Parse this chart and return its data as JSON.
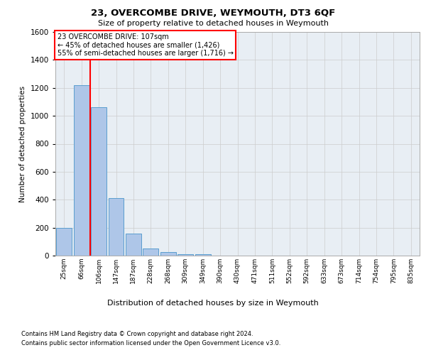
{
  "title": "23, OVERCOMBE DRIVE, WEYMOUTH, DT3 6QF",
  "subtitle": "Size of property relative to detached houses in Weymouth",
  "xlabel": "Distribution of detached houses by size in Weymouth",
  "ylabel": "Number of detached properties",
  "categories": [
    "25sqm",
    "66sqm",
    "106sqm",
    "147sqm",
    "187sqm",
    "228sqm",
    "268sqm",
    "309sqm",
    "349sqm",
    "390sqm",
    "430sqm",
    "471sqm",
    "511sqm",
    "552sqm",
    "592sqm",
    "633sqm",
    "673sqm",
    "714sqm",
    "754sqm",
    "795sqm",
    "835sqm"
  ],
  "values": [
    200,
    1220,
    1060,
    410,
    160,
    50,
    25,
    10,
    10,
    0,
    0,
    0,
    0,
    0,
    0,
    0,
    0,
    0,
    0,
    0,
    0
  ],
  "bar_color": "#aec6e8",
  "bar_edge_color": "#5a9ecf",
  "annotation_text_line1": "23 OVERCOMBE DRIVE: 107sqm",
  "annotation_text_line2": "← 45% of detached houses are smaller (1,426)",
  "annotation_text_line3": "55% of semi-detached houses are larger (1,716) →",
  "annotation_box_color": "white",
  "annotation_box_edge": "red",
  "vline_color": "red",
  "ylim": [
    0,
    1600
  ],
  "yticks": [
    0,
    200,
    400,
    600,
    800,
    1000,
    1200,
    1400,
    1600
  ],
  "grid_color": "#cccccc",
  "bg_color": "#e8eef4",
  "footer_line1": "Contains HM Land Registry data © Crown copyright and database right 2024.",
  "footer_line2": "Contains public sector information licensed under the Open Government Licence v3.0."
}
